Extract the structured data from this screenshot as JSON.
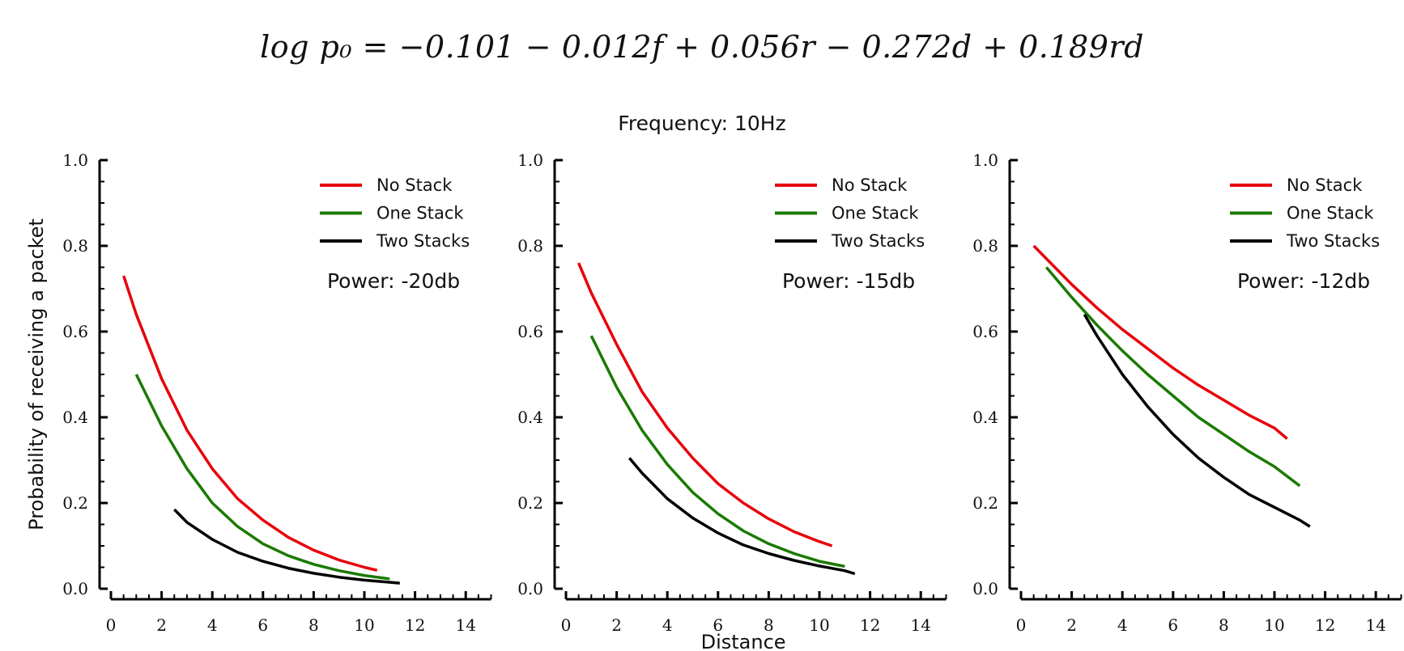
{
  "equation": "log p₀ = −0.101 − 0.012f + 0.056r − 0.272d + 0.189rd",
  "suptitle": "Frequency:  10Hz",
  "chart_data": [
    {
      "type": "line",
      "annotation": "Power:  -20db",
      "xlabel": "",
      "ylabel": "Probability of receiving a packet",
      "xlim": [
        0,
        15
      ],
      "ylim": [
        0,
        1.0
      ],
      "x_ticks": [
        "0",
        "2",
        "4",
        "6",
        "8",
        "10",
        "12",
        "14"
      ],
      "y_ticks": [
        "0.0",
        "0.2",
        "0.4",
        "0.6",
        "0.8",
        "1.0"
      ],
      "legend_position": "top-right",
      "series": [
        {
          "name": "No Stack",
          "color": "#e8000b",
          "x": [
            0.5,
            1,
            2,
            3,
            4,
            5,
            6,
            7,
            8,
            9,
            10,
            10.5
          ],
          "y": [
            0.73,
            0.64,
            0.49,
            0.37,
            0.28,
            0.21,
            0.16,
            0.12,
            0.09,
            0.067,
            0.05,
            0.043
          ]
        },
        {
          "name": "One Stack",
          "color": "#1a7a00",
          "x": [
            1,
            2,
            3,
            4,
            5,
            6,
            7,
            8,
            9,
            10,
            11
          ],
          "y": [
            0.5,
            0.38,
            0.28,
            0.2,
            0.145,
            0.105,
            0.077,
            0.057,
            0.042,
            0.031,
            0.023
          ]
        },
        {
          "name": "Two Stacks",
          "color": "#000000",
          "x": [
            2.5,
            3,
            4,
            5,
            6,
            7,
            8,
            9,
            10,
            11,
            11.4
          ],
          "y": [
            0.185,
            0.155,
            0.115,
            0.085,
            0.064,
            0.048,
            0.036,
            0.027,
            0.02,
            0.015,
            0.013
          ]
        }
      ]
    },
    {
      "type": "line",
      "annotation": "Power:  -15db",
      "xlabel": "Distance",
      "ylabel": "",
      "xlim": [
        0,
        15
      ],
      "ylim": [
        0,
        1.0
      ],
      "x_ticks": [
        "0",
        "2",
        "4",
        "6",
        "8",
        "10",
        "12",
        "14"
      ],
      "y_ticks": [
        "0.0",
        "0.2",
        "0.4",
        "0.6",
        "0.8",
        "1.0"
      ],
      "legend_position": "top-right",
      "series": [
        {
          "name": "No Stack",
          "color": "#e8000b",
          "x": [
            0.5,
            1,
            2,
            3,
            4,
            5,
            6,
            7,
            8,
            9,
            10,
            10.5
          ],
          "y": [
            0.76,
            0.69,
            0.57,
            0.46,
            0.375,
            0.305,
            0.245,
            0.2,
            0.163,
            0.133,
            0.11,
            0.1
          ]
        },
        {
          "name": "One Stack",
          "color": "#1a7a00",
          "x": [
            1,
            2,
            3,
            4,
            5,
            6,
            7,
            8,
            9,
            10,
            11
          ],
          "y": [
            0.59,
            0.47,
            0.37,
            0.29,
            0.225,
            0.175,
            0.135,
            0.105,
            0.082,
            0.064,
            0.052
          ]
        },
        {
          "name": "Two Stacks",
          "color": "#000000",
          "x": [
            2.5,
            3,
            4,
            5,
            6,
            7,
            8,
            9,
            10,
            11,
            11.4
          ],
          "y": [
            0.305,
            0.27,
            0.21,
            0.165,
            0.13,
            0.102,
            0.082,
            0.066,
            0.053,
            0.042,
            0.035
          ]
        }
      ]
    },
    {
      "type": "line",
      "annotation": "Power:  -12db",
      "xlabel": "",
      "ylabel": "",
      "xlim": [
        0,
        15
      ],
      "ylim": [
        0,
        1.0
      ],
      "x_ticks": [
        "0",
        "2",
        "4",
        "6",
        "8",
        "10",
        "12",
        "14"
      ],
      "y_ticks": [
        "0.0",
        "0.2",
        "0.4",
        "0.6",
        "0.8",
        "1.0"
      ],
      "legend_position": "top-right",
      "series": [
        {
          "name": "No Stack",
          "color": "#e8000b",
          "x": [
            0.5,
            1,
            2,
            3,
            4,
            5,
            6,
            7,
            8,
            9,
            10,
            10.5
          ],
          "y": [
            0.8,
            0.77,
            0.71,
            0.655,
            0.605,
            0.56,
            0.515,
            0.475,
            0.44,
            0.405,
            0.375,
            0.35
          ]
        },
        {
          "name": "One Stack",
          "color": "#1a7a00",
          "x": [
            1,
            2,
            3,
            4,
            5,
            6,
            7,
            8,
            9,
            10,
            11
          ],
          "y": [
            0.75,
            0.68,
            0.615,
            0.555,
            0.5,
            0.45,
            0.4,
            0.36,
            0.32,
            0.285,
            0.24
          ]
        },
        {
          "name": "Two Stacks",
          "color": "#000000",
          "x": [
            2.5,
            3,
            4,
            5,
            6,
            7,
            8,
            9,
            10,
            11,
            11.4
          ],
          "y": [
            0.64,
            0.59,
            0.5,
            0.425,
            0.36,
            0.305,
            0.26,
            0.22,
            0.19,
            0.16,
            0.145
          ]
        }
      ]
    }
  ]
}
